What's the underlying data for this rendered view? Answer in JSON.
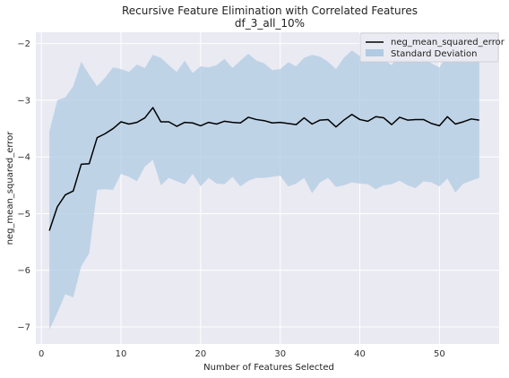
{
  "chart_data": {
    "type": "line",
    "title": "Recursive Feature Elimination with Correlated Features",
    "subtitle": "df_3_all_10%",
    "xlabel": "Number of Features Selected",
    "ylabel": "neg_mean_squared_error",
    "xlim": [
      -0.7,
      57.5
    ],
    "ylim": [
      -7.3,
      -1.8
    ],
    "xticks": [
      0,
      10,
      20,
      30,
      40,
      50
    ],
    "yticks": [
      -7,
      -6,
      -5,
      -4,
      -3,
      -2
    ],
    "grid": true,
    "legend_position": "top-right",
    "colors": {
      "plot_background": "#eaeaf2",
      "grid": "#ffffff",
      "line": "#000000",
      "band": "#b0cbe3"
    },
    "series": [
      {
        "name": "neg_mean_squared_error",
        "kind": "line",
        "x": [
          1,
          2,
          3,
          4,
          5,
          6,
          7,
          8,
          9,
          10,
          11,
          12,
          13,
          14,
          15,
          16,
          17,
          18,
          19,
          20,
          21,
          22,
          23,
          24,
          25,
          26,
          27,
          28,
          29,
          30,
          31,
          32,
          33,
          34,
          35,
          36,
          37,
          38,
          39,
          40,
          41,
          42,
          43,
          44,
          45,
          46,
          47,
          48,
          49,
          50,
          51,
          52,
          53,
          54,
          55
        ],
        "y": [
          -5.3,
          -4.88,
          -4.67,
          -4.6,
          -4.13,
          -4.12,
          -3.66,
          -3.59,
          -3.5,
          -3.38,
          -3.42,
          -3.39,
          -3.31,
          -3.13,
          -3.38,
          -3.38,
          -3.46,
          -3.39,
          -3.4,
          -3.45,
          -3.39,
          -3.42,
          -3.37,
          -3.39,
          -3.4,
          -3.3,
          -3.34,
          -3.36,
          -3.4,
          -3.39,
          -3.41,
          -3.43,
          -3.31,
          -3.42,
          -3.35,
          -3.34,
          -3.47,
          -3.35,
          -3.25,
          -3.34,
          -3.37,
          -3.29,
          -3.31,
          -3.43,
          -3.3,
          -3.35,
          -3.34,
          -3.34,
          -3.41,
          -3.45,
          -3.29,
          -3.42,
          -3.38,
          -3.33,
          -3.35
        ]
      },
      {
        "name": "Standard Deviation",
        "kind": "band",
        "x": [
          1,
          2,
          3,
          4,
          5,
          6,
          7,
          8,
          9,
          10,
          11,
          12,
          13,
          14,
          15,
          16,
          17,
          18,
          19,
          20,
          21,
          22,
          23,
          24,
          25,
          26,
          27,
          28,
          29,
          30,
          31,
          32,
          33,
          34,
          35,
          36,
          37,
          38,
          39,
          40,
          41,
          42,
          43,
          44,
          45,
          46,
          47,
          48,
          49,
          50,
          51,
          52,
          53,
          54,
          55
        ],
        "upper": [
          -3.55,
          -3.0,
          -2.95,
          -2.75,
          -2.32,
          -2.55,
          -2.75,
          -2.6,
          -2.42,
          -2.45,
          -2.5,
          -2.37,
          -2.43,
          -2.2,
          -2.25,
          -2.38,
          -2.5,
          -2.3,
          -2.52,
          -2.4,
          -2.42,
          -2.38,
          -2.27,
          -2.43,
          -2.3,
          -2.18,
          -2.3,
          -2.35,
          -2.47,
          -2.45,
          -2.33,
          -2.4,
          -2.25,
          -2.2,
          -2.23,
          -2.32,
          -2.45,
          -2.25,
          -2.12,
          -2.22,
          -2.25,
          -2.2,
          -2.28,
          -2.38,
          -2.18,
          -2.28,
          -2.25,
          -2.23,
          -2.35,
          -2.42,
          -2.2,
          -2.3,
          -2.28,
          -2.25,
          -2.28
        ],
        "lower": [
          -7.05,
          -6.75,
          -6.42,
          -6.48,
          -5.93,
          -5.7,
          -4.58,
          -4.57,
          -4.58,
          -4.3,
          -4.35,
          -4.43,
          -4.17,
          -4.05,
          -4.5,
          -4.37,
          -4.43,
          -4.48,
          -4.3,
          -4.52,
          -4.37,
          -4.47,
          -4.48,
          -4.35,
          -4.52,
          -4.42,
          -4.37,
          -4.37,
          -4.35,
          -4.33,
          -4.52,
          -4.47,
          -4.37,
          -4.64,
          -4.45,
          -4.37,
          -4.53,
          -4.5,
          -4.45,
          -4.47,
          -4.48,
          -4.57,
          -4.5,
          -4.48,
          -4.42,
          -4.5,
          -4.55,
          -4.43,
          -4.45,
          -4.52,
          -4.38,
          -4.63,
          -4.47,
          -4.42,
          -4.37
        ]
      }
    ]
  }
}
